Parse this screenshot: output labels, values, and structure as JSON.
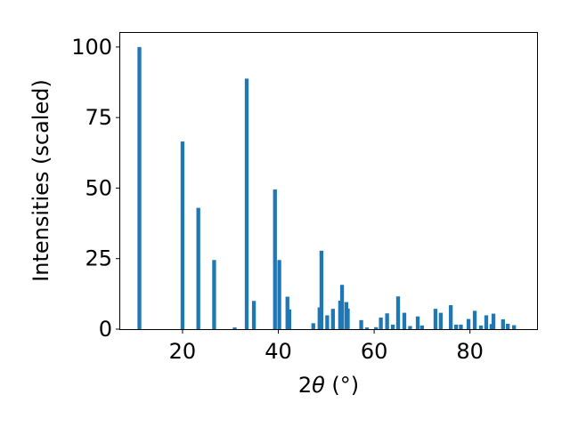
{
  "chart_data": {
    "type": "bar",
    "xlabel_prefix": "2",
    "xlabel_symbol": "θ",
    "xlabel_suffix": " (°)",
    "ylabel": "Intensities (scaled)",
    "xlim": [
      7,
      94
    ],
    "ylim": [
      0,
      105
    ],
    "xticks": [
      20,
      40,
      60,
      80
    ],
    "yticks": [
      0,
      25,
      50,
      75,
      100
    ],
    "grid": false,
    "bar_color": "#1f77b4",
    "bar_width": 0.8,
    "x": [
      11.0,
      20.0,
      23.3,
      26.6,
      30.9,
      33.4,
      34.9,
      39.3,
      40.2,
      41.9,
      42.3,
      47.3,
      48.6,
      49.0,
      50.2,
      51.4,
      52.9,
      53.3,
      54.2,
      54.5,
      57.3,
      58.5,
      60.4,
      61.4,
      62.7,
      63.9,
      65.0,
      66.3,
      67.5,
      69.1,
      70.0,
      72.8,
      73.9,
      76.0,
      77.1,
      78.1,
      79.7,
      81.0,
      82.3,
      83.4,
      84.5,
      84.9,
      86.9,
      87.9,
      89.2
    ],
    "values": [
      100,
      66.5,
      43,
      24.5,
      0.6,
      88.8,
      10,
      49.5,
      24.5,
      11.5,
      7,
      2.1,
      7.7,
      27.8,
      4.9,
      7.2,
      10.1,
      15.7,
      9.6,
      7.3,
      3.2,
      0.6,
      0.7,
      4.1,
      5.6,
      1.6,
      11.6,
      5.8,
      1.1,
      4.5,
      1.3,
      7.2,
      5.8,
      8.5,
      1.6,
      1.6,
      3.6,
      6.5,
      1.3,
      4.9,
      1.8,
      5.5,
      3.5,
      1.9,
      1.4
    ]
  }
}
